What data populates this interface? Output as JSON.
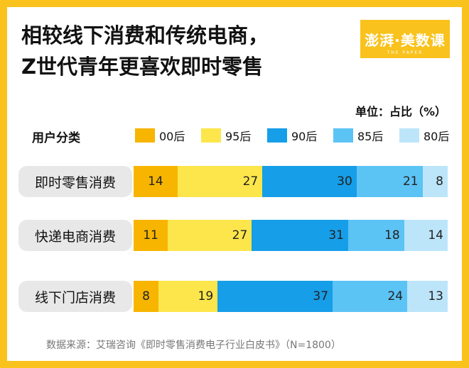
{
  "title_line1": "相较线下消费和传统电商，",
  "title_line2": "Z世代青年更喜欢即时零售",
  "logo": {
    "text": "澎湃·美数课",
    "subtext": "THE PAPER"
  },
  "unit_label": "单位：占比（%）",
  "legend_title": "用户分类",
  "colors": {
    "00后": "#f7b500",
    "95后": "#fde64b",
    "90后": "#169ee8",
    "85后": "#5cc3f5",
    "80后": "#bde5fa"
  },
  "chart_data": {
    "type": "bar",
    "orientation": "horizontal",
    "stacked": true,
    "categories": [
      "即时零售消费",
      "快递电商消费",
      "线下门店消费"
    ],
    "series": [
      {
        "name": "00后",
        "values": [
          14,
          11,
          8
        ]
      },
      {
        "name": "95后",
        "values": [
          27,
          27,
          19
        ]
      },
      {
        "name": "90后",
        "values": [
          30,
          31,
          37
        ]
      },
      {
        "name": "85后",
        "values": [
          21,
          18,
          24
        ]
      },
      {
        "name": "80后",
        "values": [
          8,
          14,
          13
        ]
      }
    ],
    "legend": "top"
  },
  "source": "数据来源：艾瑞咨询《即时零售消费电子行业白皮书》（N=1800）"
}
